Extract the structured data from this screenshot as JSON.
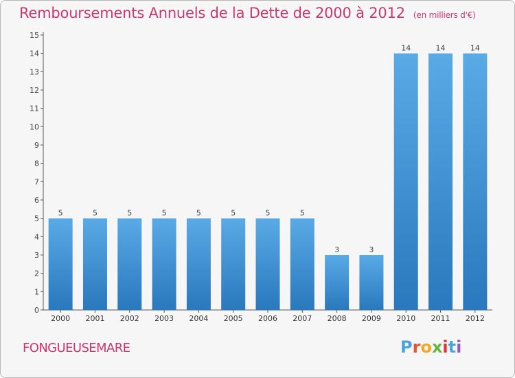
{
  "chart_data": {
    "type": "bar",
    "title": "Remboursements Annuels de la Dette de 2000 à 2012",
    "unit": "(en milliers d'€)",
    "categories": [
      "2000",
      "2001",
      "2002",
      "2003",
      "2004",
      "2005",
      "2006",
      "2007",
      "2008",
      "2009",
      "2010",
      "2011",
      "2012"
    ],
    "values": [
      5,
      5,
      5,
      5,
      5,
      5,
      5,
      5,
      3,
      3,
      14,
      14,
      14
    ],
    "ylim": [
      0,
      15
    ],
    "yticks": [
      0,
      1,
      2,
      3,
      4,
      5,
      6,
      7,
      8,
      9,
      10,
      11,
      12,
      13,
      14,
      15
    ],
    "grid": false,
    "bar_color": "#3a8fd6",
    "bar_color_light": "#5aaae6",
    "bar_color_dark": "#2a78bd"
  },
  "footer": {
    "town": "FONGUEUSEMARE",
    "logo_text": "Proxiti"
  },
  "colors": {
    "accent": "#c8386f",
    "background": "#f6f6f6",
    "logo_letters": [
      "#4aa3df",
      "#e8552d",
      "#f0a72a",
      "#67b346",
      "#e0313a",
      "#4aa3df",
      "#9b59b6"
    ]
  }
}
